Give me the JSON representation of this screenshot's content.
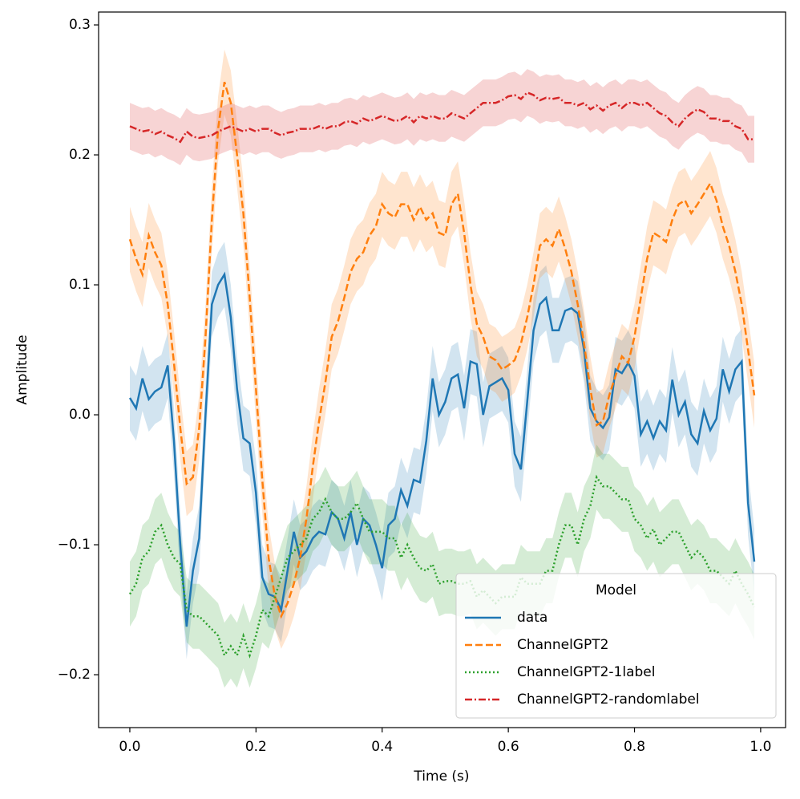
{
  "chart_data": {
    "type": "line",
    "xlabel": "Time (s)",
    "ylabel": "Amplitude",
    "x": [
      0,
      0.01,
      0.02,
      0.03,
      0.04,
      0.05,
      0.06,
      0.07,
      0.08,
      0.09,
      0.1,
      0.11,
      0.12,
      0.13,
      0.14,
      0.15,
      0.16,
      0.17,
      0.18,
      0.19,
      0.2,
      0.21,
      0.22,
      0.23,
      0.24,
      0.25,
      0.26,
      0.27,
      0.28,
      0.29,
      0.3,
      0.31,
      0.32,
      0.33,
      0.34,
      0.35,
      0.36,
      0.37,
      0.38,
      0.39,
      0.4,
      0.41,
      0.42,
      0.43,
      0.44,
      0.45,
      0.46,
      0.47,
      0.48,
      0.49,
      0.5,
      0.51,
      0.52,
      0.53,
      0.54,
      0.55,
      0.56,
      0.57,
      0.58,
      0.59,
      0.6,
      0.61,
      0.62,
      0.63,
      0.64,
      0.65,
      0.66,
      0.67,
      0.68,
      0.69,
      0.7,
      0.71,
      0.72,
      0.73,
      0.74,
      0.75,
      0.76,
      0.77,
      0.78,
      0.79,
      0.8,
      0.81,
      0.82,
      0.83,
      0.84,
      0.85,
      0.86,
      0.87,
      0.88,
      0.89,
      0.9,
      0.91,
      0.92,
      0.93,
      0.94,
      0.95,
      0.96,
      0.97,
      0.98,
      0.99
    ],
    "series": [
      {
        "name": "data",
        "color": "#1f77b4",
        "style": "solid",
        "band": 0.025,
        "values": [
          0.013,
          0.005,
          0.028,
          0.012,
          0.018,
          0.021,
          0.038,
          -0.02,
          -0.1,
          -0.163,
          -0.12,
          -0.095,
          0.0,
          0.085,
          0.1,
          0.108,
          0.075,
          0.02,
          -0.018,
          -0.022,
          -0.06,
          -0.125,
          -0.138,
          -0.14,
          -0.15,
          -0.12,
          -0.09,
          -0.11,
          -0.105,
          -0.095,
          -0.09,
          -0.092,
          -0.075,
          -0.08,
          -0.095,
          -0.075,
          -0.1,
          -0.08,
          -0.085,
          -0.1,
          -0.118,
          -0.085,
          -0.08,
          -0.058,
          -0.07,
          -0.05,
          -0.052,
          -0.02,
          0.028,
          0.0,
          0.01,
          0.028,
          0.031,
          0.005,
          0.041,
          0.039,
          0.0,
          0.022,
          0.025,
          0.028,
          0.019,
          -0.03,
          -0.042,
          0.01,
          0.065,
          0.085,
          0.09,
          0.065,
          0.065,
          0.08,
          0.082,
          0.078,
          0.05,
          0.005,
          -0.005,
          -0.01,
          -0.002,
          0.035,
          0.032,
          0.04,
          0.03,
          -0.015,
          -0.005,
          -0.018,
          -0.005,
          -0.012,
          0.027,
          0.0,
          0.01,
          -0.015,
          -0.022,
          0.003,
          -0.012,
          -0.003,
          0.035,
          0.018,
          0.035,
          0.041,
          -0.068,
          -0.113
        ]
      },
      {
        "name": "ChannelGPT2",
        "color": "#ff7f0e",
        "style": "dashed",
        "band": 0.025,
        "values": [
          0.135,
          0.12,
          0.108,
          0.138,
          0.125,
          0.115,
          0.085,
          0.04,
          -0.01,
          -0.053,
          -0.048,
          -0.01,
          0.06,
          0.15,
          0.22,
          0.256,
          0.24,
          0.2,
          0.155,
          0.09,
          0.02,
          -0.05,
          -0.11,
          -0.14,
          -0.155,
          -0.145,
          -0.13,
          -0.11,
          -0.08,
          -0.04,
          -0.005,
          0.025,
          0.06,
          0.072,
          0.09,
          0.11,
          0.12,
          0.125,
          0.138,
          0.145,
          0.162,
          0.155,
          0.152,
          0.162,
          0.162,
          0.15,
          0.16,
          0.15,
          0.155,
          0.14,
          0.138,
          0.162,
          0.17,
          0.14,
          0.1,
          0.07,
          0.06,
          0.045,
          0.042,
          0.035,
          0.038,
          0.042,
          0.055,
          0.075,
          0.1,
          0.13,
          0.135,
          0.13,
          0.143,
          0.128,
          0.11,
          0.085,
          0.055,
          0.02,
          -0.008,
          -0.005,
          0.015,
          0.03,
          0.045,
          0.04,
          0.06,
          0.09,
          0.12,
          0.14,
          0.137,
          0.133,
          0.15,
          0.162,
          0.165,
          0.155,
          0.162,
          0.17,
          0.178,
          0.165,
          0.145,
          0.13,
          0.11,
          0.085,
          0.05,
          0.015
        ]
      },
      {
        "name": "ChannelGPT2-1label",
        "color": "#2ca02c",
        "style": "dotted",
        "band": 0.025,
        "values": [
          -0.138,
          -0.13,
          -0.11,
          -0.105,
          -0.09,
          -0.085,
          -0.1,
          -0.11,
          -0.115,
          -0.15,
          -0.155,
          -0.155,
          -0.16,
          -0.165,
          -0.17,
          -0.185,
          -0.178,
          -0.185,
          -0.17,
          -0.185,
          -0.17,
          -0.15,
          -0.155,
          -0.14,
          -0.125,
          -0.11,
          -0.105,
          -0.1,
          -0.095,
          -0.08,
          -0.075,
          -0.065,
          -0.075,
          -0.08,
          -0.08,
          -0.075,
          -0.068,
          -0.08,
          -0.09,
          -0.09,
          -0.09,
          -0.095,
          -0.095,
          -0.11,
          -0.1,
          -0.11,
          -0.118,
          -0.12,
          -0.115,
          -0.13,
          -0.128,
          -0.128,
          -0.13,
          -0.13,
          -0.128,
          -0.14,
          -0.135,
          -0.14,
          -0.145,
          -0.14,
          -0.14,
          -0.14,
          -0.125,
          -0.13,
          -0.13,
          -0.13,
          -0.12,
          -0.12,
          -0.1,
          -0.085,
          -0.085,
          -0.1,
          -0.08,
          -0.07,
          -0.048,
          -0.055,
          -0.055,
          -0.06,
          -0.065,
          -0.065,
          -0.08,
          -0.085,
          -0.095,
          -0.088,
          -0.1,
          -0.095,
          -0.09,
          -0.09,
          -0.1,
          -0.11,
          -0.105,
          -0.11,
          -0.12,
          -0.12,
          -0.125,
          -0.13,
          -0.12,
          -0.13,
          -0.138,
          -0.148
        ]
      },
      {
        "name": "ChannelGPT2-randomlabel",
        "color": "#d62728",
        "style": "dashdot",
        "band": 0.018,
        "values": [
          0.222,
          0.22,
          0.218,
          0.219,
          0.216,
          0.218,
          0.215,
          0.213,
          0.21,
          0.218,
          0.214,
          0.213,
          0.214,
          0.215,
          0.218,
          0.22,
          0.222,
          0.22,
          0.218,
          0.22,
          0.218,
          0.22,
          0.22,
          0.217,
          0.215,
          0.217,
          0.218,
          0.22,
          0.22,
          0.22,
          0.222,
          0.22,
          0.222,
          0.222,
          0.225,
          0.226,
          0.224,
          0.228,
          0.226,
          0.228,
          0.23,
          0.228,
          0.226,
          0.227,
          0.23,
          0.225,
          0.23,
          0.228,
          0.23,
          0.228,
          0.228,
          0.232,
          0.23,
          0.228,
          0.232,
          0.236,
          0.24,
          0.24,
          0.24,
          0.242,
          0.245,
          0.246,
          0.243,
          0.248,
          0.246,
          0.242,
          0.244,
          0.243,
          0.244,
          0.24,
          0.24,
          0.238,
          0.24,
          0.235,
          0.238,
          0.234,
          0.238,
          0.24,
          0.236,
          0.24,
          0.24,
          0.238,
          0.24,
          0.236,
          0.232,
          0.23,
          0.225,
          0.222,
          0.228,
          0.232,
          0.235,
          0.233,
          0.228,
          0.228,
          0.226,
          0.226,
          0.222,
          0.22,
          0.212,
          0.212
        ]
      }
    ],
    "xlim": [
      -0.0495,
      1.0395
    ],
    "xticks": [
      {
        "value": 0,
        "label": "0.0"
      },
      0.2,
      0.4,
      0.6,
      0.8,
      {
        "value": 1,
        "label": "1.0"
      }
    ],
    "ylim": [
      -0.2407,
      0.3099
    ],
    "yticks": [
      {
        "value": -0.2,
        "label": "−0.2"
      },
      {
        "value": -0.1,
        "label": "−0.1"
      },
      {
        "value": 0,
        "label": "0.0"
      },
      0.1,
      0.2,
      0.3
    ],
    "legend": {
      "title": "Model",
      "loc": "lower right"
    }
  }
}
